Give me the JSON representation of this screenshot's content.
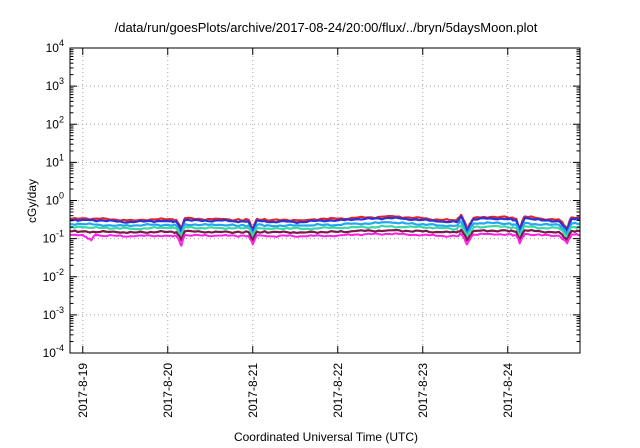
{
  "chart_data": {
    "type": "line",
    "title": "/data/run/goesPlots/archive/2017-08-24/20:00/flux/../bryn/5daysMoon.plot",
    "xlabel": "Coordinated Universal Time (UTC)",
    "ylabel": "cGy/day",
    "yscale": "log",
    "ylim": [
      0.0001,
      10000
    ],
    "xlim": [
      -0.15,
      5.85
    ],
    "grid": true,
    "y_ticks": [
      {
        "base": "10",
        "exp": "-4",
        "value": 0.0001
      },
      {
        "base": "10",
        "exp": "-3",
        "value": 0.001
      },
      {
        "base": "10",
        "exp": "-2",
        "value": 0.01
      },
      {
        "base": "10",
        "exp": "-1",
        "value": 0.1
      },
      {
        "base": "10",
        "exp": "0",
        "value": 1
      },
      {
        "base": "10",
        "exp": "1",
        "value": 10
      },
      {
        "base": "10",
        "exp": "2",
        "value": 100
      },
      {
        "base": "10",
        "exp": "3",
        "value": 1000
      },
      {
        "base": "10",
        "exp": "4",
        "value": 10000
      }
    ],
    "x_ticks": [
      {
        "label": "2017-8-19",
        "value": 0
      },
      {
        "label": "2017-8-20",
        "value": 1
      },
      {
        "label": "2017-8-21",
        "value": 2
      },
      {
        "label": "2017-8-22",
        "value": 3
      },
      {
        "label": "2017-8-23",
        "value": 4
      },
      {
        "label": "2017-8-24",
        "value": 5
      }
    ],
    "series": [
      {
        "color": "#e0242c",
        "values": [
          [
            -0.15,
            0.33
          ],
          [
            0.0,
            0.34
          ],
          [
            0.2,
            0.33
          ],
          [
            0.4,
            0.31
          ],
          [
            0.6,
            0.3
          ],
          [
            0.8,
            0.32
          ],
          [
            1.0,
            0.32
          ],
          [
            1.1,
            0.31
          ],
          [
            1.16,
            0.17
          ],
          [
            1.2,
            0.34
          ],
          [
            1.4,
            0.32
          ],
          [
            1.6,
            0.33
          ],
          [
            1.8,
            0.31
          ],
          [
            1.95,
            0.31
          ],
          [
            2.0,
            0.17
          ],
          [
            2.05,
            0.33
          ],
          [
            2.2,
            0.3
          ],
          [
            2.4,
            0.31
          ],
          [
            2.6,
            0.3
          ],
          [
            2.8,
            0.33
          ],
          [
            3.0,
            0.33
          ],
          [
            3.2,
            0.35
          ],
          [
            3.4,
            0.36
          ],
          [
            3.6,
            0.39
          ],
          [
            3.8,
            0.36
          ],
          [
            4.0,
            0.34
          ],
          [
            4.2,
            0.31
          ],
          [
            4.4,
            0.3
          ],
          [
            4.45,
            0.42
          ],
          [
            4.52,
            0.17
          ],
          [
            4.6,
            0.35
          ],
          [
            4.8,
            0.37
          ],
          [
            5.0,
            0.36
          ],
          [
            5.1,
            0.33
          ],
          [
            5.14,
            0.17
          ],
          [
            5.2,
            0.38
          ],
          [
            5.4,
            0.33
          ],
          [
            5.6,
            0.32
          ],
          [
            5.7,
            0.18
          ],
          [
            5.75,
            0.36
          ],
          [
            5.85,
            0.35
          ]
        ]
      },
      {
        "color": "#2a34d6",
        "values": [
          [
            -0.15,
            0.3
          ],
          [
            0.0,
            0.31
          ],
          [
            0.2,
            0.3
          ],
          [
            0.4,
            0.28
          ],
          [
            0.6,
            0.27
          ],
          [
            0.8,
            0.29
          ],
          [
            1.0,
            0.29
          ],
          [
            1.1,
            0.28
          ],
          [
            1.16,
            0.15
          ],
          [
            1.2,
            0.31
          ],
          [
            1.4,
            0.29
          ],
          [
            1.6,
            0.3
          ],
          [
            1.8,
            0.28
          ],
          [
            1.95,
            0.28
          ],
          [
            2.0,
            0.15
          ],
          [
            2.05,
            0.3
          ],
          [
            2.2,
            0.27
          ],
          [
            2.4,
            0.28
          ],
          [
            2.6,
            0.27
          ],
          [
            2.8,
            0.3
          ],
          [
            3.0,
            0.3
          ],
          [
            3.2,
            0.32
          ],
          [
            3.4,
            0.33
          ],
          [
            3.6,
            0.35
          ],
          [
            3.8,
            0.33
          ],
          [
            4.0,
            0.31
          ],
          [
            4.2,
            0.28
          ],
          [
            4.4,
            0.27
          ],
          [
            4.45,
            0.38
          ],
          [
            4.52,
            0.15
          ],
          [
            4.6,
            0.32
          ],
          [
            4.8,
            0.34
          ],
          [
            5.0,
            0.33
          ],
          [
            5.1,
            0.3
          ],
          [
            5.14,
            0.15
          ],
          [
            5.2,
            0.35
          ],
          [
            5.4,
            0.3
          ],
          [
            5.6,
            0.29
          ],
          [
            5.7,
            0.16
          ],
          [
            5.75,
            0.33
          ],
          [
            5.85,
            0.32
          ]
        ]
      },
      {
        "color": "#22a8f0",
        "values": [
          [
            -0.15,
            0.24
          ],
          [
            0.0,
            0.24
          ],
          [
            0.2,
            0.23
          ],
          [
            0.4,
            0.22
          ],
          [
            0.6,
            0.22
          ],
          [
            0.8,
            0.23
          ],
          [
            1.0,
            0.23
          ],
          [
            1.1,
            0.22
          ],
          [
            1.16,
            0.12
          ],
          [
            1.2,
            0.24
          ],
          [
            1.4,
            0.23
          ],
          [
            1.6,
            0.23
          ],
          [
            1.8,
            0.22
          ],
          [
            1.95,
            0.22
          ],
          [
            2.0,
            0.12
          ],
          [
            2.05,
            0.23
          ],
          [
            2.2,
            0.22
          ],
          [
            2.4,
            0.22
          ],
          [
            2.6,
            0.22
          ],
          [
            2.8,
            0.23
          ],
          [
            3.0,
            0.23
          ],
          [
            3.2,
            0.25
          ],
          [
            3.4,
            0.25
          ],
          [
            3.6,
            0.27
          ],
          [
            3.8,
            0.25
          ],
          [
            4.0,
            0.24
          ],
          [
            4.2,
            0.22
          ],
          [
            4.4,
            0.22
          ],
          [
            4.45,
            0.28
          ],
          [
            4.52,
            0.12
          ],
          [
            4.6,
            0.25
          ],
          [
            4.8,
            0.26
          ],
          [
            5.0,
            0.25
          ],
          [
            5.1,
            0.23
          ],
          [
            5.14,
            0.12
          ],
          [
            5.2,
            0.26
          ],
          [
            5.4,
            0.23
          ],
          [
            5.6,
            0.23
          ],
          [
            5.7,
            0.13
          ],
          [
            5.75,
            0.25
          ],
          [
            5.85,
            0.25
          ]
        ]
      },
      {
        "color": "#3ad9a6",
        "values": [
          [
            -0.15,
            0.2
          ],
          [
            0.0,
            0.2
          ],
          [
            0.2,
            0.19
          ],
          [
            0.4,
            0.19
          ],
          [
            0.6,
            0.18
          ],
          [
            0.8,
            0.19
          ],
          [
            1.0,
            0.19
          ],
          [
            1.1,
            0.19
          ],
          [
            1.16,
            0.11
          ],
          [
            1.2,
            0.2
          ],
          [
            1.4,
            0.19
          ],
          [
            1.6,
            0.19
          ],
          [
            1.8,
            0.19
          ],
          [
            1.95,
            0.19
          ],
          [
            2.0,
            0.11
          ],
          [
            2.05,
            0.19
          ],
          [
            2.2,
            0.18
          ],
          [
            2.4,
            0.19
          ],
          [
            2.6,
            0.18
          ],
          [
            2.8,
            0.19
          ],
          [
            3.0,
            0.19
          ],
          [
            3.2,
            0.2
          ],
          [
            3.4,
            0.2
          ],
          [
            3.6,
            0.21
          ],
          [
            3.8,
            0.2
          ],
          [
            4.0,
            0.2
          ],
          [
            4.2,
            0.19
          ],
          [
            4.4,
            0.18
          ],
          [
            4.45,
            0.22
          ],
          [
            4.52,
            0.11
          ],
          [
            4.6,
            0.2
          ],
          [
            4.8,
            0.21
          ],
          [
            5.0,
            0.2
          ],
          [
            5.1,
            0.19
          ],
          [
            5.14,
            0.11
          ],
          [
            5.2,
            0.21
          ],
          [
            5.4,
            0.19
          ],
          [
            5.6,
            0.19
          ],
          [
            5.7,
            0.11
          ],
          [
            5.75,
            0.2
          ],
          [
            5.85,
            0.2
          ]
        ]
      },
      {
        "color": "#7a1a4a",
        "values": [
          [
            -0.15,
            0.155
          ],
          [
            0.0,
            0.155
          ],
          [
            0.2,
            0.15
          ],
          [
            0.4,
            0.148
          ],
          [
            0.6,
            0.145
          ],
          [
            0.8,
            0.15
          ],
          [
            1.0,
            0.15
          ],
          [
            1.1,
            0.148
          ],
          [
            1.16,
            0.09
          ],
          [
            1.2,
            0.155
          ],
          [
            1.4,
            0.15
          ],
          [
            1.6,
            0.15
          ],
          [
            1.8,
            0.148
          ],
          [
            1.95,
            0.148
          ],
          [
            2.0,
            0.09
          ],
          [
            2.05,
            0.152
          ],
          [
            2.2,
            0.145
          ],
          [
            2.4,
            0.148
          ],
          [
            2.6,
            0.145
          ],
          [
            2.8,
            0.15
          ],
          [
            3.0,
            0.15
          ],
          [
            3.2,
            0.158
          ],
          [
            3.4,
            0.16
          ],
          [
            3.6,
            0.165
          ],
          [
            3.8,
            0.16
          ],
          [
            4.0,
            0.155
          ],
          [
            4.2,
            0.148
          ],
          [
            4.4,
            0.145
          ],
          [
            4.45,
            0.17
          ],
          [
            4.52,
            0.09
          ],
          [
            4.6,
            0.158
          ],
          [
            4.8,
            0.162
          ],
          [
            5.0,
            0.16
          ],
          [
            5.1,
            0.152
          ],
          [
            5.14,
            0.09
          ],
          [
            5.2,
            0.165
          ],
          [
            5.4,
            0.152
          ],
          [
            5.6,
            0.15
          ],
          [
            5.7,
            0.09
          ],
          [
            5.75,
            0.158
          ],
          [
            5.85,
            0.156
          ]
        ]
      },
      {
        "color": "#ff22e6",
        "values": [
          [
            -0.15,
            0.125
          ],
          [
            0.0,
            0.125
          ],
          [
            0.1,
            0.09
          ],
          [
            0.15,
            0.13
          ],
          [
            0.2,
            0.12
          ],
          [
            0.4,
            0.118
          ],
          [
            0.6,
            0.115
          ],
          [
            0.8,
            0.12
          ],
          [
            1.0,
            0.12
          ],
          [
            1.1,
            0.118
          ],
          [
            1.16,
            0.065
          ],
          [
            1.2,
            0.125
          ],
          [
            1.4,
            0.12
          ],
          [
            1.6,
            0.12
          ],
          [
            1.8,
            0.118
          ],
          [
            1.95,
            0.118
          ],
          [
            2.0,
            0.07
          ],
          [
            2.05,
            0.122
          ],
          [
            2.2,
            0.115
          ],
          [
            2.4,
            0.118
          ],
          [
            2.6,
            0.115
          ],
          [
            2.8,
            0.12
          ],
          [
            3.0,
            0.12
          ],
          [
            3.2,
            0.128
          ],
          [
            3.4,
            0.13
          ],
          [
            3.6,
            0.133
          ],
          [
            3.8,
            0.13
          ],
          [
            4.0,
            0.125
          ],
          [
            4.2,
            0.118
          ],
          [
            4.4,
            0.115
          ],
          [
            4.45,
            0.135
          ],
          [
            4.52,
            0.07
          ],
          [
            4.6,
            0.128
          ],
          [
            4.8,
            0.132
          ],
          [
            5.0,
            0.13
          ],
          [
            5.1,
            0.122
          ],
          [
            5.14,
            0.075
          ],
          [
            5.2,
            0.133
          ],
          [
            5.4,
            0.122
          ],
          [
            5.6,
            0.12
          ],
          [
            5.7,
            0.075
          ],
          [
            5.75,
            0.128
          ],
          [
            5.85,
            0.126
          ]
        ]
      }
    ]
  }
}
